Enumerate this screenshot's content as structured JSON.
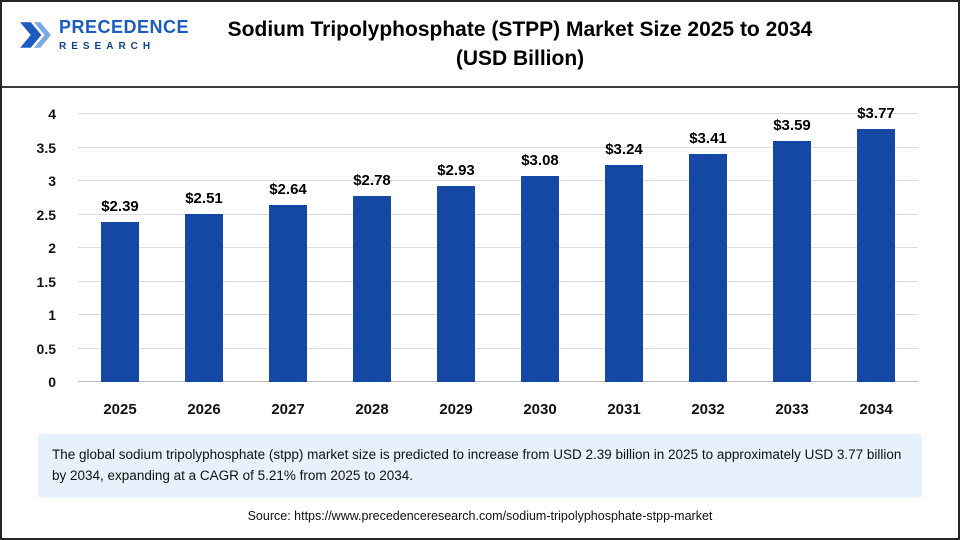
{
  "header": {
    "logo": {
      "line1": "PRECEDENCE",
      "line2": "RESEARCH"
    },
    "title_line1": "Sodium Tripolyphosphate (STPP) Market Size 2025 to 2034",
    "title_line2": "(USD Billion)"
  },
  "chart_data": {
    "type": "bar",
    "title": "Sodium Tripolyphosphate (STPP) Market Size 2025 to 2034 (USD Billion)",
    "categories": [
      "2025",
      "2026",
      "2027",
      "2028",
      "2029",
      "2030",
      "2031",
      "2032",
      "2033",
      "2034"
    ],
    "values": [
      2.39,
      2.51,
      2.64,
      2.78,
      2.93,
      3.08,
      3.24,
      3.41,
      3.59,
      3.77
    ],
    "value_labels": [
      "$2.39",
      "$2.51",
      "$2.64",
      "$2.78",
      "$2.93",
      "$3.08",
      "$3.24",
      "$3.41",
      "$3.59",
      "$3.77"
    ],
    "xlabel": "",
    "ylabel": "",
    "ylim": [
      0,
      4
    ],
    "yticks": [
      0,
      0.5,
      1,
      1.5,
      2,
      2.5,
      3,
      3.5,
      4
    ],
    "grid": true,
    "legend": false,
    "bar_color": "#1547a4"
  },
  "note": {
    "text": "The global sodium tripolyphosphate (stpp) market size is predicted to increase from USD 2.39 billion in 2025 to approximately USD 3.77 billion by 2034, expanding at a CAGR of 5.21% from 2025 to 2034."
  },
  "source": {
    "text": "Source: https://www.precedenceresearch.com/sodium-tripolyphosphate-stpp-market"
  }
}
